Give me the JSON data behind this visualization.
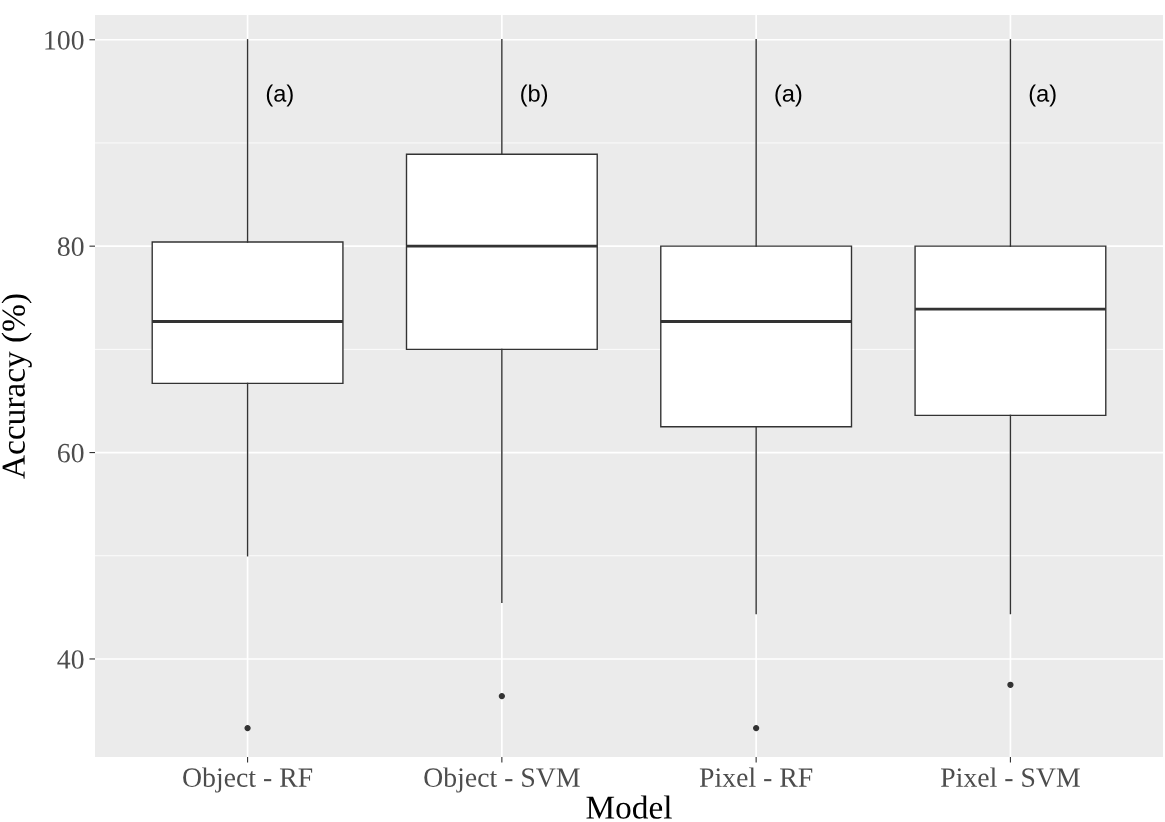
{
  "chart_data": {
    "type": "box",
    "xlabel": "Model",
    "ylabel": "Accuracy (%)",
    "categories": [
      "Object - RF",
      "Object - SVM",
      "Pixel - RF",
      "Pixel - SVM"
    ],
    "boxes": [
      {
        "low": 50,
        "q1": 66.7,
        "median": 72.7,
        "q3": 80.4,
        "high": 100,
        "outliers": [
          33.3
        ]
      },
      {
        "low": 45.5,
        "q1": 70,
        "median": 80,
        "q3": 88.9,
        "high": 100,
        "outliers": [
          36.4
        ]
      },
      {
        "low": 44.4,
        "q1": 62.5,
        "median": 72.7,
        "q3": 80,
        "high": 100,
        "outliers": [
          33.3
        ]
      },
      {
        "low": 44.4,
        "q1": 63.6,
        "median": 73.9,
        "q3": 80,
        "high": 100,
        "outliers": [
          37.5
        ]
      }
    ],
    "ylim": [
      30.5,
      102.4
    ],
    "yticks": [
      40,
      60,
      80,
      100
    ],
    "grid": true,
    "annotations": [
      {
        "text": "(a)",
        "x": "Object - RF",
        "y": 94.6
      },
      {
        "text": "(b)",
        "x": "Object - SVM",
        "y": 94.6
      },
      {
        "text": "(a)",
        "x": "Pixel - RF",
        "y": 94.6
      },
      {
        "text": "(a)",
        "x": "Pixel - SVM",
        "y": 94.6
      }
    ]
  }
}
